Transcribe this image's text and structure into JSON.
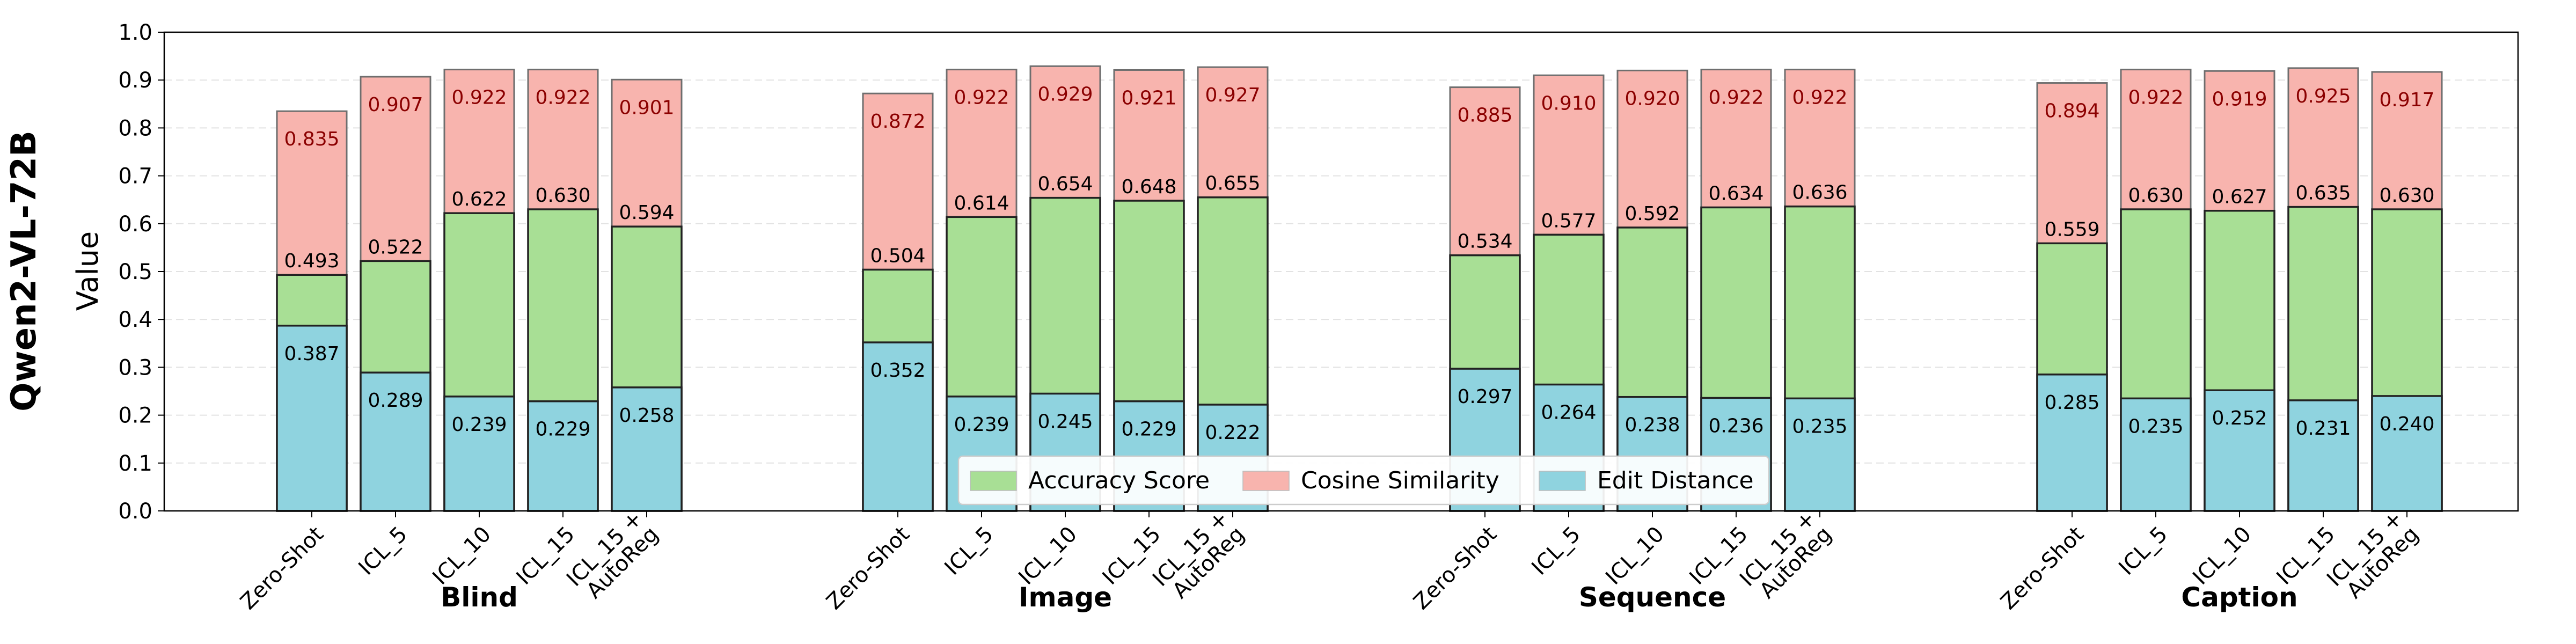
{
  "chart_data": {
    "type": "bar",
    "title": "",
    "model_label": "Qwen2-VL-72B",
    "ylabel": "Value",
    "ylim": [
      0,
      1.0
    ],
    "yticks": [
      "0.0",
      "0.1",
      "0.2",
      "0.3",
      "0.4",
      "0.5",
      "0.6",
      "0.7",
      "0.8",
      "0.9",
      "1.0"
    ],
    "grid": true,
    "legend_position": "bottom-center",
    "series": [
      {
        "key": "cos",
        "name": "Cosine Similarity",
        "color": "#f8b4ae"
      },
      {
        "key": "acc",
        "name": "Accuracy Score",
        "color": "#a8df95"
      },
      {
        "key": "edit",
        "name": "Edit Distance",
        "color": "#8fd3df"
      }
    ],
    "legend_order": [
      "acc",
      "cos",
      "edit"
    ],
    "groups": [
      {
        "name": "Blind",
        "categories": [
          "Zero-Shot",
          "ICL_5",
          "ICL_10",
          "ICL_15",
          "ICL_15 +\nAutoReg"
        ],
        "cos": [
          0.835,
          0.907,
          0.922,
          0.922,
          0.901
        ],
        "acc": [
          0.493,
          0.522,
          0.622,
          0.63,
          0.594
        ],
        "edit": [
          0.387,
          0.289,
          0.239,
          0.229,
          0.258
        ],
        "cos_labels": [
          "0.835",
          "0.907",
          "0.922",
          "0.922",
          "0.901"
        ],
        "acc_labels": [
          "0.493",
          "0.522",
          "0.622",
          "0.630",
          "0.594"
        ],
        "edit_labels": [
          "0.387",
          "0.289",
          "0.239",
          "0.229",
          "0.258"
        ]
      },
      {
        "name": "Image",
        "categories": [
          "Zero-Shot",
          "ICL_5",
          "ICL_10",
          "ICL_15",
          "ICL_15 +\nAutoReg"
        ],
        "cos": [
          0.872,
          0.922,
          0.929,
          0.921,
          0.927
        ],
        "acc": [
          0.504,
          0.614,
          0.654,
          0.648,
          0.655
        ],
        "edit": [
          0.352,
          0.239,
          0.245,
          0.229,
          0.222
        ],
        "cos_labels": [
          "0.872",
          "0.922",
          "0.929",
          "0.921",
          "0.927"
        ],
        "acc_labels": [
          "0.504",
          "0.614",
          "0.654",
          "0.648",
          "0.655"
        ],
        "edit_labels": [
          "0.352",
          "0.239",
          "0.245",
          "0.229",
          "0.222"
        ]
      },
      {
        "name": "Sequence",
        "categories": [
          "Zero-Shot",
          "ICL_5",
          "ICL_10",
          "ICL_15",
          "ICL_15 +\nAutoReg"
        ],
        "cos": [
          0.885,
          0.91,
          0.92,
          0.922,
          0.922
        ],
        "acc": [
          0.534,
          0.577,
          0.592,
          0.634,
          0.636
        ],
        "edit": [
          0.297,
          0.264,
          0.238,
          0.236,
          0.235
        ],
        "cos_labels": [
          "0.885",
          "0.910",
          "0.920",
          "0.922",
          "0.922"
        ],
        "acc_labels": [
          "0.534",
          "0.577",
          "0.592",
          "0.634",
          "0.636"
        ],
        "edit_labels": [
          "0.297",
          "0.264",
          "0.238",
          "0.236",
          "0.235"
        ]
      },
      {
        "name": "Caption",
        "categories": [
          "Zero-Shot",
          "ICL_5",
          "ICL_10",
          "ICL_15",
          "ICL_15 +\nAutoReg"
        ],
        "cos": [
          0.894,
          0.922,
          0.919,
          0.925,
          0.917
        ],
        "acc": [
          0.559,
          0.63,
          0.627,
          0.635,
          0.63
        ],
        "edit": [
          0.285,
          0.235,
          0.252,
          0.231,
          0.24
        ],
        "cos_labels": [
          "0.894",
          "0.922",
          "0.919",
          "0.925",
          "0.917"
        ],
        "acc_labels": [
          "0.559",
          "0.630",
          "0.627",
          "0.635",
          "0.630"
        ],
        "edit_labels": [
          "0.285",
          "0.235",
          "0.252",
          "0.231",
          "0.240"
        ]
      }
    ]
  }
}
